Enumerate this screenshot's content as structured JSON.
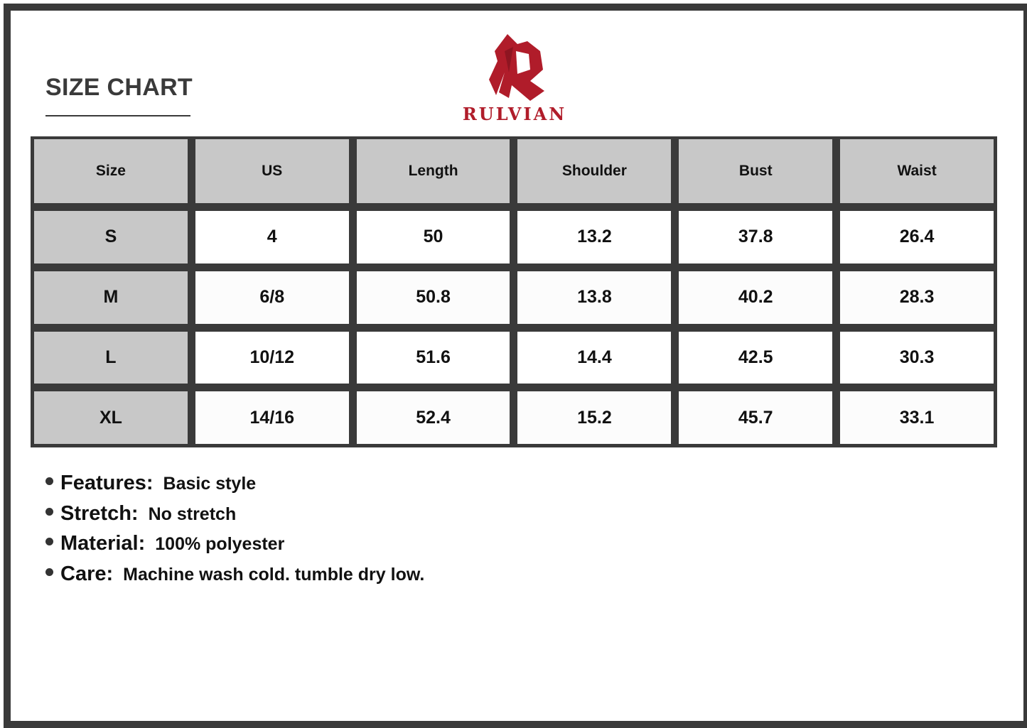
{
  "title": "SIZE CHART",
  "brand": {
    "name": "RULVIAN",
    "color": "#b01c2a"
  },
  "table": {
    "headers": [
      "Size",
      "US",
      "Length",
      "Shoulder",
      "Bust",
      "Waist"
    ],
    "rows": [
      [
        "S",
        "4",
        "50",
        "13.2",
        "37.8",
        "26.4"
      ],
      [
        "M",
        "6/8",
        "50.8",
        "13.8",
        "40.2",
        "28.3"
      ],
      [
        "L",
        "10/12",
        "51.6",
        "14.4",
        "42.5",
        "30.3"
      ],
      [
        "XL",
        "14/16",
        "52.4",
        "15.2",
        "45.7",
        "33.1"
      ]
    ]
  },
  "notes": [
    {
      "label": "Features:",
      "value": "Basic style"
    },
    {
      "label": "Stretch:",
      "value": "No stretch"
    },
    {
      "label": "Material:",
      "value": "100% polyester"
    },
    {
      "label": "Care:",
      "value": "Machine wash cold. tumble dry low."
    }
  ]
}
